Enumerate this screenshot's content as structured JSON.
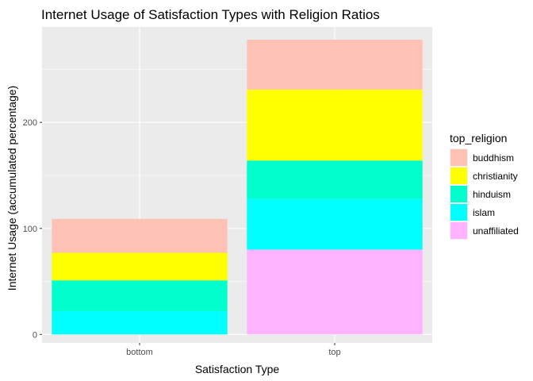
{
  "chart_data": {
    "type": "bar",
    "stacked": true,
    "title": "Internet Usage of Satisfaction Types with Religion Ratios",
    "xlabel": "Satisfaction Type",
    "ylabel": "Internet Usage (accumulated percentage)",
    "categories": [
      "bottom",
      "top"
    ],
    "ylim": [
      -8,
      290
    ],
    "yticks": [
      0,
      100,
      200
    ],
    "grid": true,
    "legend_title": "top_religion",
    "legend_position": "right",
    "series": [
      {
        "name": "buddhism",
        "color": "#FFC1B3",
        "values": [
          32,
          47
        ]
      },
      {
        "name": "christianity",
        "color": "#FFFF00",
        "values": [
          26,
          67
        ]
      },
      {
        "name": "hinduism",
        "color": "#00FFCC",
        "values": [
          29,
          36
        ]
      },
      {
        "name": "islam",
        "color": "#00FFFF",
        "values": [
          22,
          48
        ]
      },
      {
        "name": "unaffiliated",
        "color": "#FFB3FF",
        "values": [
          0,
          80
        ]
      }
    ],
    "stack_order_bottom_to_top": [
      "unaffiliated",
      "islam",
      "hinduism",
      "christianity",
      "buddhism"
    ]
  }
}
